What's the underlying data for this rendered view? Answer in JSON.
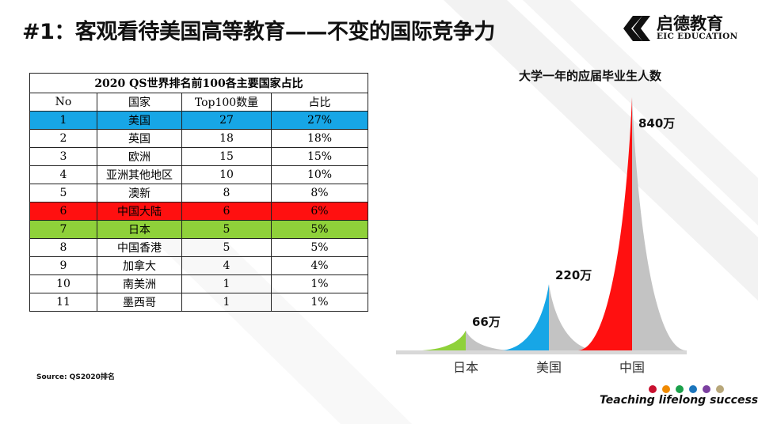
{
  "slide": {
    "title": "#1：客观看待美国高等教育——不变的国际竞争力",
    "source": "Source: QS2020排名",
    "tagline": "Teaching lifelong success"
  },
  "logo": {
    "name_cn": "启德教育",
    "name_en": "EIC EDUCATION",
    "icon": "eic-logo-icon"
  },
  "table": {
    "caption": "2020 QS世界排名前100各主要国家占比",
    "headers": [
      "No",
      "国家",
      "Top100数量",
      "占比"
    ],
    "rows": [
      {
        "no": "1",
        "country": "美国",
        "count": "27",
        "share": "27%",
        "highlight": "blue"
      },
      {
        "no": "2",
        "country": "英国",
        "count": "18",
        "share": "18%",
        "highlight": ""
      },
      {
        "no": "3",
        "country": "欧洲",
        "count": "15",
        "share": "15%",
        "highlight": ""
      },
      {
        "no": "4",
        "country": "亚洲其他地区",
        "count": "10",
        "share": "10%",
        "highlight": ""
      },
      {
        "no": "5",
        "country": "澳新",
        "count": "8",
        "share": "8%",
        "highlight": ""
      },
      {
        "no": "6",
        "country": "中国大陆",
        "count": "6",
        "share": "6%",
        "highlight": "red"
      },
      {
        "no": "7",
        "country": "日本",
        "count": "5",
        "share": "5%",
        "highlight": "green"
      },
      {
        "no": "8",
        "country": "中国香港",
        "count": "5",
        "share": "5%",
        "highlight": ""
      },
      {
        "no": "9",
        "country": "加拿大",
        "count": "4",
        "share": "4%",
        "highlight": ""
      },
      {
        "no": "10",
        "country": "南美洲",
        "count": "1",
        "share": "1%",
        "highlight": ""
      },
      {
        "no": "11",
        "country": "墨西哥",
        "count": "1",
        "share": "1%",
        "highlight": ""
      }
    ]
  },
  "chart_data": {
    "type": "bar",
    "title": "大学一年的应届毕业生人数",
    "categories": [
      "日本",
      "美国",
      "中国"
    ],
    "values": [
      66,
      220,
      840
    ],
    "value_labels": [
      "66万",
      "220万",
      "840万"
    ],
    "colors": [
      "#8fd13a",
      "#17a6e6",
      "#ff1010"
    ],
    "shadow_color": "#c3c3c3",
    "ylim": [
      0,
      840
    ],
    "xlabel": "",
    "ylabel": "",
    "grid": false
  },
  "colors": {
    "accent_blue": "#17a6e6",
    "accent_red": "#ff1010",
    "accent_green": "#8fd13a",
    "deco_gray": "#eeeeee"
  },
  "footer_dots": [
    "#c8102e",
    "#f08a00",
    "#1aa04a",
    "#1b75bc",
    "#7b3fa0",
    "#b8a77a"
  ]
}
